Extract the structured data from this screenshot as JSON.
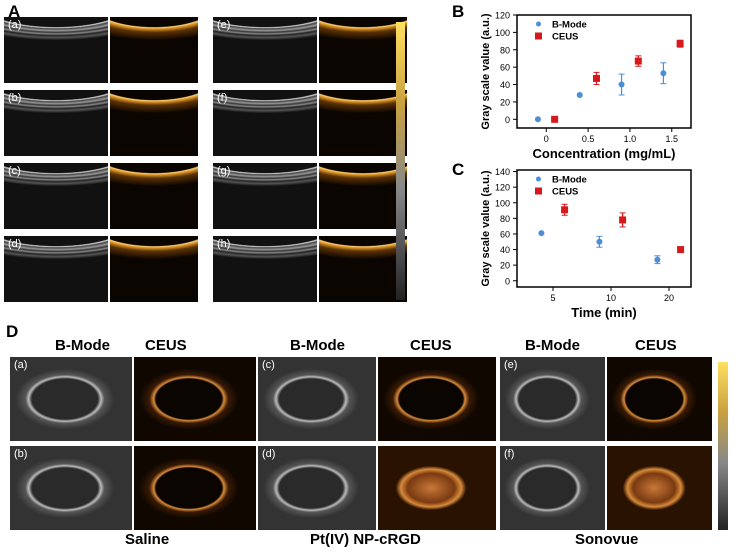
{
  "panels": {
    "a": "A",
    "b": "B",
    "c": "C",
    "d": "D"
  },
  "panel_a": {
    "tags": [
      "(a)",
      "(b)",
      "(c)",
      "(d)",
      "(e)",
      "(f)",
      "(g)",
      "(h)"
    ]
  },
  "panel_d": {
    "headers": [
      "B-Mode",
      "CEUS",
      "B-Mode",
      "CEUS",
      "B-Mode",
      "CEUS"
    ],
    "tags": [
      "(a)",
      "(b)",
      "(c)",
      "(d)",
      "(e)",
      "(f)"
    ],
    "groups": [
      "Saline",
      "Pt(IV) NP-cRGD",
      "Sonovue"
    ]
  },
  "colors": {
    "bmode": "#4a90d9",
    "ceus": "#d7191c"
  },
  "chart_data": [
    {
      "type": "scatter",
      "xlabel": "Concentration (mg/mL)",
      "ylabel": "Gray scale value (a.u.)",
      "xlim": [
        -0.35,
        1.73
      ],
      "ylim": [
        -10,
        120
      ],
      "xticks": [
        0,
        0.5,
        1.0,
        1.5
      ],
      "xtick_labels": [
        "0",
        "0.5",
        "1.0",
        "1.5"
      ],
      "yticks": [
        0,
        20,
        40,
        60,
        80,
        100,
        120
      ],
      "legend": "top-left",
      "grid": false,
      "series": [
        {
          "name": "B-Mode",
          "marker": "circle",
          "x": [
            -0.1,
            0.4,
            0.9,
            1.4
          ],
          "y": [
            0,
            28,
            40,
            53
          ],
          "err": [
            0,
            0,
            12,
            12
          ]
        },
        {
          "name": "CEUS",
          "marker": "square",
          "x": [
            0.1,
            0.6,
            1.1,
            1.6
          ],
          "y": [
            0,
            47,
            67,
            87
          ],
          "err": [
            0,
            7,
            6,
            4
          ]
        }
      ]
    },
    {
      "type": "scatter",
      "xlabel": "Time (min)",
      "ylabel": "Gray scale value (a.u.)",
      "ylim": [
        -8,
        142
      ],
      "xticks": [
        5,
        10,
        20
      ],
      "xtick_labels": [
        "5",
        "10",
        "20"
      ],
      "yticks": [
        0,
        20,
        40,
        60,
        80,
        100,
        120,
        140
      ],
      "legend": "top-left",
      "grid": false,
      "series": [
        {
          "name": "B-Mode",
          "marker": "circle",
          "x": [
            4,
            9,
            18
          ],
          "y": [
            61,
            50,
            27
          ],
          "err": [
            0,
            7,
            5
          ]
        },
        {
          "name": "CEUS",
          "marker": "square",
          "x": [
            6,
            12,
            22
          ],
          "y": [
            91,
            78,
            40
          ],
          "err": [
            7,
            9,
            2
          ]
        }
      ]
    }
  ]
}
